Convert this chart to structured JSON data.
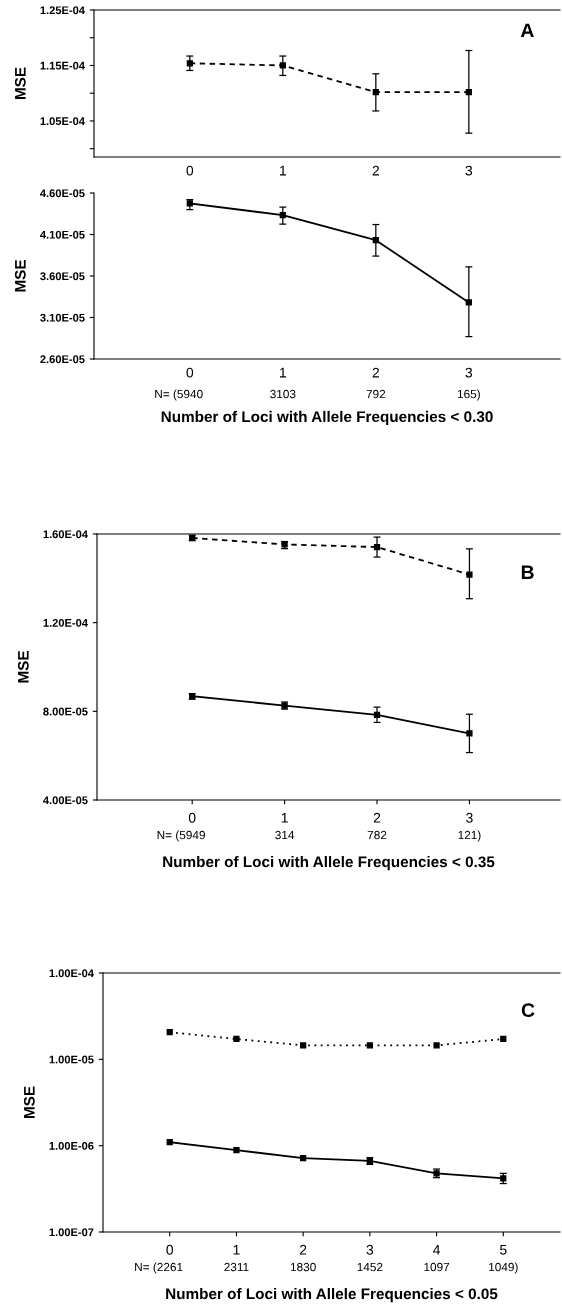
{
  "chart_data": [
    {
      "type": "line",
      "title": "A",
      "ylabel": "MSE",
      "categories": [
        "0",
        "1",
        "2",
        "3"
      ],
      "marker": "square",
      "grid": false,
      "legend": false,
      "ylim": [
        9.85e-05,
        0.000125
      ],
      "yticks": [
        {
          "value": 0.000125,
          "label": "1.25E-04"
        },
        {
          "value": 0.00012,
          "label": null
        },
        {
          "value": 0.000115,
          "label": "1.15E-04"
        },
        {
          "value": 0.00011,
          "label": null
        },
        {
          "value": 0.000105,
          "label": "1.05E-04"
        },
        {
          "value": 0.0001,
          "label": null
        }
      ],
      "series": [
        {
          "color": "#000000",
          "line_style": "dashed",
          "values": [
            0.0001154,
            0.000115,
            0.0001102,
            0.0001102
          ],
          "errors": [
            [
              0.0001141,
              0.0001167
            ],
            [
              0.0001132,
              0.0001167
            ],
            [
              0.0001068,
              0.0001135
            ],
            [
              0.0001028,
              0.0001177
            ]
          ]
        }
      ]
    },
    {
      "type": "line",
      "ylabel": "MSE",
      "xlabel": "Number of Loci with Allele Frequencies < 0.30",
      "categories": [
        "0",
        "1",
        "2",
        "3"
      ],
      "marker": "square",
      "grid": false,
      "legend": false,
      "ylim": [
        2.6e-05,
        4.6e-05
      ],
      "yticks": [
        {
          "value": 4.6e-05,
          "label": "4.60E-05"
        },
        {
          "value": 4.1e-05,
          "label": "4.10E-05"
        },
        {
          "value": 3.6e-05,
          "label": "3.60E-05"
        },
        {
          "value": 3.1e-05,
          "label": "3.10E-05"
        },
        {
          "value": 2.6e-05,
          "label": "2.60E-05"
        }
      ],
      "annotations": [
        "N= (5940",
        "3103",
        "792",
        "165)"
      ],
      "series": [
        {
          "color": "#000000",
          "line_style": "solid",
          "values": [
            4.475e-05,
            4.333e-05,
            4.031e-05,
            3.281e-05
          ],
          "errors": [
            [
              4.4e-05,
              4.52e-05
            ],
            [
              4.225e-05,
              4.43e-05
            ],
            [
              3.84e-05,
              4.22e-05
            ],
            [
              2.87e-05,
              3.71e-05
            ]
          ]
        }
      ]
    },
    {
      "type": "line",
      "title": "B",
      "ylabel": "MSE",
      "xlabel": "Number of Loci with Allele Frequencies < 0.35",
      "categories": [
        "0",
        "1",
        "2",
        "3"
      ],
      "marker": "square",
      "grid": false,
      "legend": false,
      "ylim": [
        4e-05,
        0.00016
      ],
      "yticks": [
        {
          "value": 0.00016,
          "label": "1.60E-04"
        },
        {
          "value": 0.00012,
          "label": "1.20E-04"
        },
        {
          "value": 8e-05,
          "label": "8.00E-05"
        },
        {
          "value": 4e-05,
          "label": "4.00E-05"
        }
      ],
      "annotations": [
        "N= (5949",
        "314",
        "782",
        "121)"
      ],
      "series": [
        {
          "color": "#000000",
          "line_style": "dashed",
          "values": [
            0.0001582,
            0.0001553,
            0.0001541,
            0.0001417
          ],
          "errors": [
            [
              0.000157,
              0.0001594
            ],
            [
              0.0001534,
              0.0001566
            ],
            [
              0.0001496,
              0.0001586
            ],
            [
              0.0001308,
              0.0001533
            ]
          ]
        },
        {
          "color": "#000000",
          "line_style": "solid",
          "values": [
            8.68e-05,
            8.26e-05,
            7.84e-05,
            7e-05
          ],
          "errors": [
            [
              8.55e-05,
              8.8e-05
            ],
            [
              8.1e-05,
              8.42e-05
            ],
            [
              7.5e-05,
              8.19e-05
            ],
            [
              6.14e-05,
              7.87e-05
            ]
          ]
        }
      ]
    },
    {
      "type": "line",
      "title": "C",
      "ylabel": "MSE",
      "xlabel": "Number of Loci with Allele Frequencies < 0.05",
      "categories": [
        "0",
        "1",
        "2",
        "3",
        "4",
        "5"
      ],
      "marker": "square",
      "grid": false,
      "legend": false,
      "log": true,
      "ylim": [
        1e-07,
        0.0001
      ],
      "yticks": [
        {
          "value": 0.0001,
          "label": "1.00E-04"
        },
        {
          "value": 1e-05,
          "label": "1.00E-05"
        },
        {
          "value": 1e-06,
          "label": "1.00E-06"
        },
        {
          "value": 1e-07,
          "label": "1.00E-07"
        }
      ],
      "annotations": [
        "N= (2261",
        "2311",
        "1830",
        "1452",
        "1097",
        "1049)"
      ],
      "series": [
        {
          "color": "#000000",
          "line_style": "dotted",
          "values": [
            2.06e-05,
            1.72e-05,
            1.45e-05,
            1.45e-05,
            1.45e-05,
            1.72e-05
          ]
        },
        {
          "color": "#000000",
          "line_style": "solid",
          "values": [
            1.1e-06,
            8.87e-07,
            7.19e-07,
            6.67e-07,
            4.78e-07,
            4.18e-07
          ],
          "errors": [
            null,
            null,
            null,
            [
              6.06e-07,
              7.26e-07
            ],
            [
              4.26e-07,
              5.36e-07
            ],
            [
              3.64e-07,
              4.78e-07
            ]
          ]
        }
      ]
    }
  ]
}
